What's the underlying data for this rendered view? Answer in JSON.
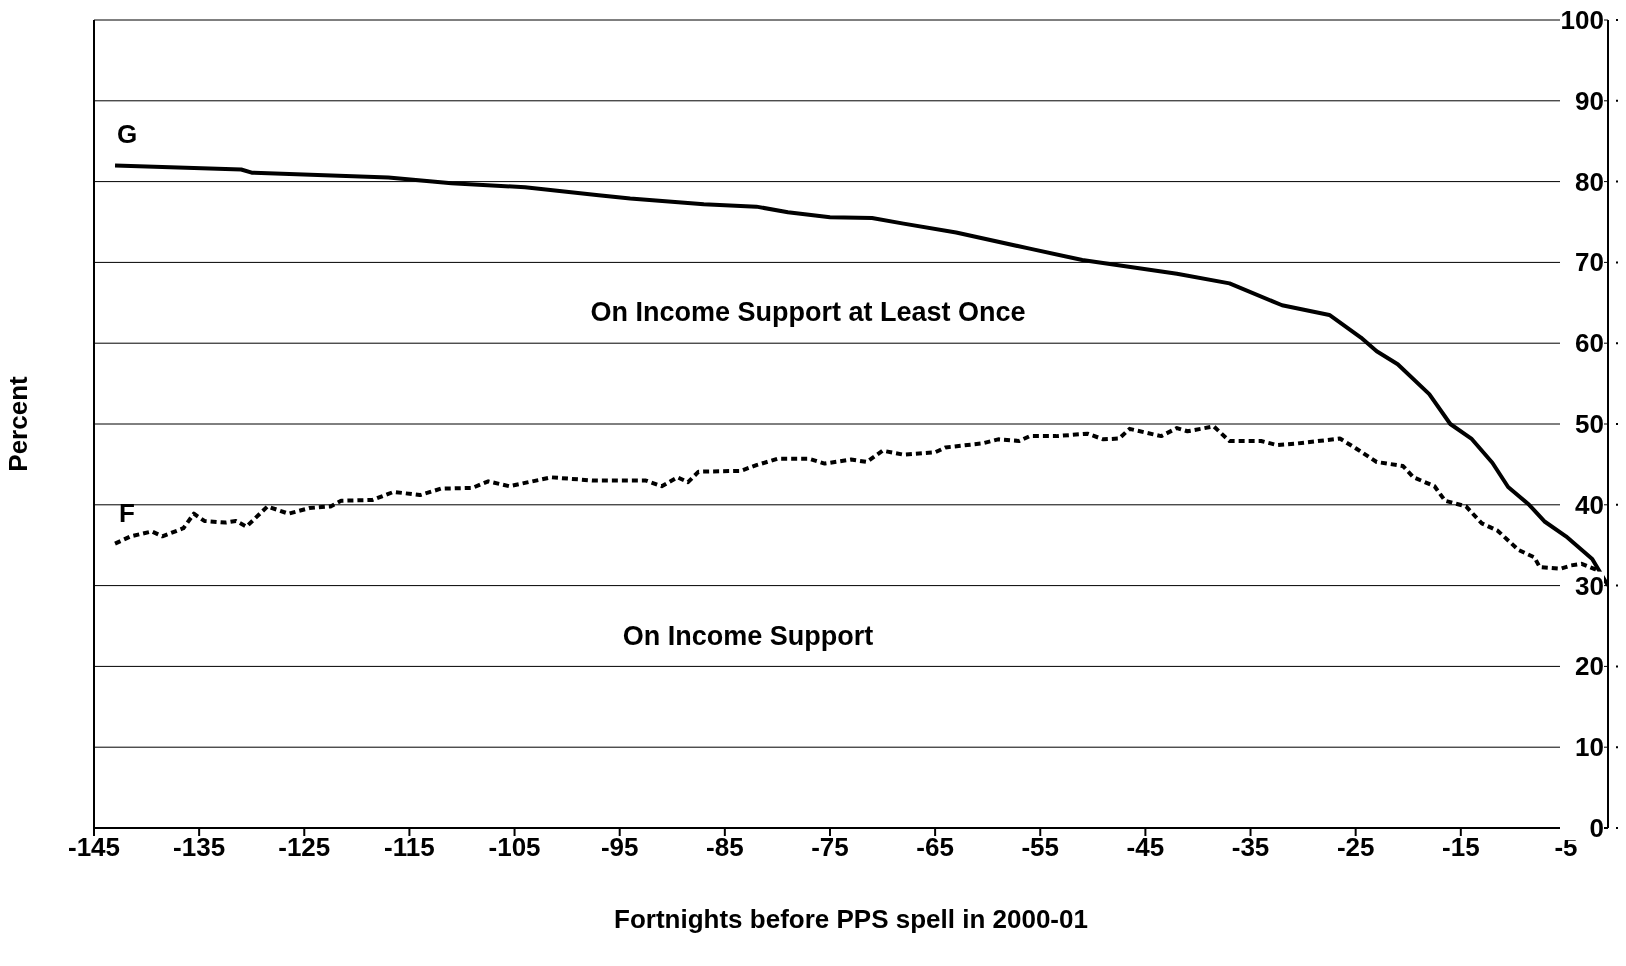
{
  "chart_data": {
    "type": "line",
    "xlabel": "Fortnights before PPS spell in 2000-01",
    "ylabel": "Percent",
    "xlim": [
      -145,
      -1
    ],
    "xticks": [
      -145,
      -135,
      -125,
      -115,
      -105,
      -95,
      -85,
      -75,
      -65,
      -55,
      -45,
      -35,
      -25,
      -15,
      -5
    ],
    "ylim": [
      0,
      100
    ],
    "yticks": [
      0,
      10,
      20,
      30,
      40,
      50,
      60,
      70,
      80,
      90,
      100
    ],
    "grid": "y",
    "legend": false,
    "marker": "none",
    "annotations": [
      "On Income Support at Least Once",
      "On Income Support"
    ],
    "series": [
      {
        "name": "G",
        "color": "#000000",
        "line_style": "solid",
        "x": [
          -143,
          -131,
          -130,
          -117,
          -111,
          -104,
          -97,
          -94,
          -87,
          -82,
          -79,
          -75,
          -71,
          -68,
          -63,
          -56,
          -51,
          -42,
          -37,
          -32,
          -27.5,
          -24.5,
          -23,
          -21,
          -18,
          -16,
          -14,
          -12,
          -10.5,
          -8.5,
          -7,
          -5,
          -2.5,
          -1
        ],
        "values": [
          82,
          81.5,
          81.1,
          80.5,
          79.8,
          79.3,
          78.3,
          77.9,
          77.2,
          76.9,
          76.2,
          75.6,
          75.5,
          74.8,
          73.7,
          71.7,
          70.3,
          68.6,
          67.4,
          64.7,
          63.5,
          60.7,
          59,
          57.4,
          53.7,
          50,
          48.2,
          45.2,
          42.2,
          40,
          37.9,
          36.1,
          33.3,
          30
        ]
      },
      {
        "name": "F",
        "color": "#000000",
        "line_style": "dotted",
        "x": [
          -143,
          -141.5,
          -139.5,
          -138.5,
          -136.5,
          -135.5,
          -134.5,
          -132.5,
          -131.5,
          -130.5,
          -128.5,
          -126.5,
          -124.5,
          -122.5,
          -121.5,
          -118.5,
          -116.5,
          -114,
          -112,
          -109,
          -107.5,
          -105.5,
          -101.5,
          -97.5,
          -92.5,
          -91,
          -89.5,
          -88.5,
          -87.5,
          -83.5,
          -82,
          -80,
          -77,
          -75.5,
          -73,
          -71.5,
          -70,
          -68,
          -65,
          -64,
          -60.5,
          -59,
          -57,
          -56,
          -53.5,
          -50.5,
          -49,
          -47.5,
          -46.5,
          -43.5,
          -42,
          -41,
          -38.5,
          -37,
          -34,
          -32.5,
          -30.5,
          -26.5,
          -25,
          -23,
          -20.5,
          -19.5,
          -17.5,
          -16.5,
          -14.5,
          -13,
          -11.5,
          -9.5,
          -8,
          -7.5,
          -5.5,
          -4.5,
          -3.5,
          -2
        ],
        "values": [
          35.2,
          36.1,
          36.7,
          36.1,
          37.1,
          38.9,
          38,
          37.8,
          38,
          37.3,
          39.8,
          38.9,
          39.6,
          39.8,
          40.5,
          40.6,
          41.6,
          41.2,
          42,
          42.1,
          42.9,
          42.3,
          43.4,
          43,
          43,
          42.3,
          43.4,
          42.8,
          44.1,
          44.2,
          44.9,
          45.7,
          45.7,
          45.1,
          45.6,
          45.3,
          46.7,
          46.2,
          46.5,
          47.1,
          47.6,
          48.1,
          47.9,
          48.5,
          48.5,
          48.8,
          48.1,
          48.2,
          49.4,
          48.5,
          49.5,
          49.1,
          49.7,
          47.9,
          47.9,
          47.4,
          47.6,
          48.2,
          47,
          45.3,
          44.8,
          43.4,
          42.3,
          40.5,
          39.8,
          37.7,
          36.8,
          34.4,
          33.5,
          32.3,
          32.1,
          32.5,
          32.7,
          31.9
        ]
      }
    ]
  }
}
